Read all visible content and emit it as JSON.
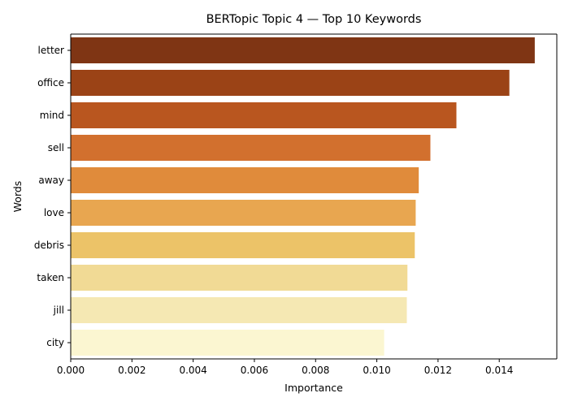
{
  "chart_data": {
    "type": "bar",
    "orientation": "horizontal",
    "title": "BERTopic Topic 4 — Top 10 Keywords",
    "xlabel": "Importance",
    "ylabel": "Words",
    "categories": [
      "letter",
      "office",
      "mind",
      "sell",
      "away",
      "love",
      "debris",
      "taken",
      "jill",
      "city"
    ],
    "values": [
      0.01516,
      0.01433,
      0.0126,
      0.01175,
      0.01137,
      0.01127,
      0.01124,
      0.011,
      0.01098,
      0.01024
    ],
    "colors": [
      "#7f3514",
      "#9b4316",
      "#b9561f",
      "#d2702e",
      "#e08b3b",
      "#e8a650",
      "#ecc368",
      "#f1da95",
      "#f5e8b3",
      "#fbf6d1"
    ],
    "xlim": [
      0,
      0.01588
    ],
    "xticks": [
      "0.000",
      "0.002",
      "0.004",
      "0.006",
      "0.008",
      "0.010",
      "0.012",
      "0.014"
    ],
    "grid": false,
    "legend": "none"
  }
}
